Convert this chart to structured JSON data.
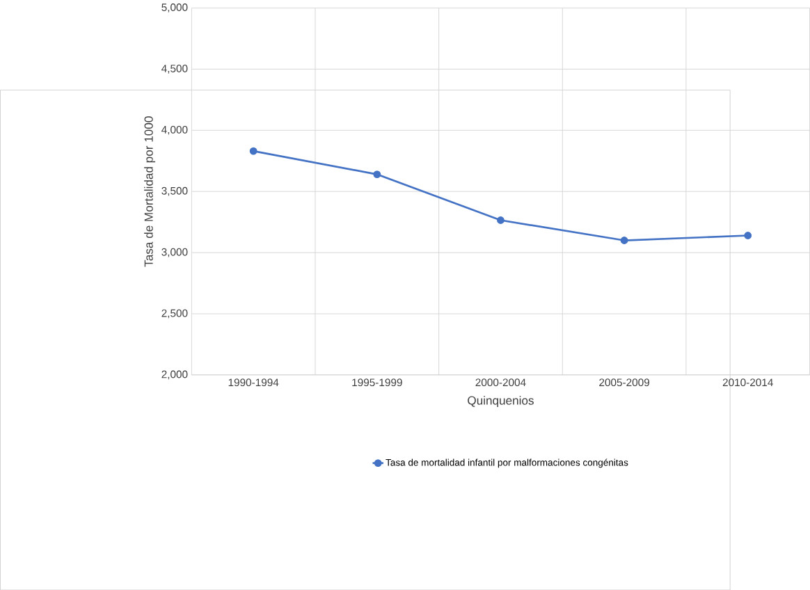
{
  "chart_data": {
    "type": "line",
    "categories": [
      "1990-1994",
      "1995-1999",
      "2000-2004",
      "2005-2009",
      "2010-2014"
    ],
    "series": [
      {
        "name": "Tasa de mortalidad infantil por malformaciones congénitas",
        "color": "#4472c4",
        "values": [
          3830,
          3640,
          3265,
          3100,
          3140
        ]
      }
    ],
    "xlabel": "Quinquenios",
    "ylabel": "Tasa de Mortalidad por 1000",
    "ylim": [
      2000,
      5000
    ],
    "yticks": [
      {
        "value": 2000,
        "label": "2,000"
      },
      {
        "value": 2500,
        "label": "2,500"
      },
      {
        "value": 3000,
        "label": "3,000"
      },
      {
        "value": 3500,
        "label": "3,500"
      },
      {
        "value": 4000,
        "label": "4,000"
      },
      {
        "value": 4500,
        "label": "4,500"
      },
      {
        "value": 5000,
        "label": "5,000"
      }
    ],
    "grid": true,
    "legend": "bottom",
    "marker": "circle",
    "line_style": "solid"
  }
}
